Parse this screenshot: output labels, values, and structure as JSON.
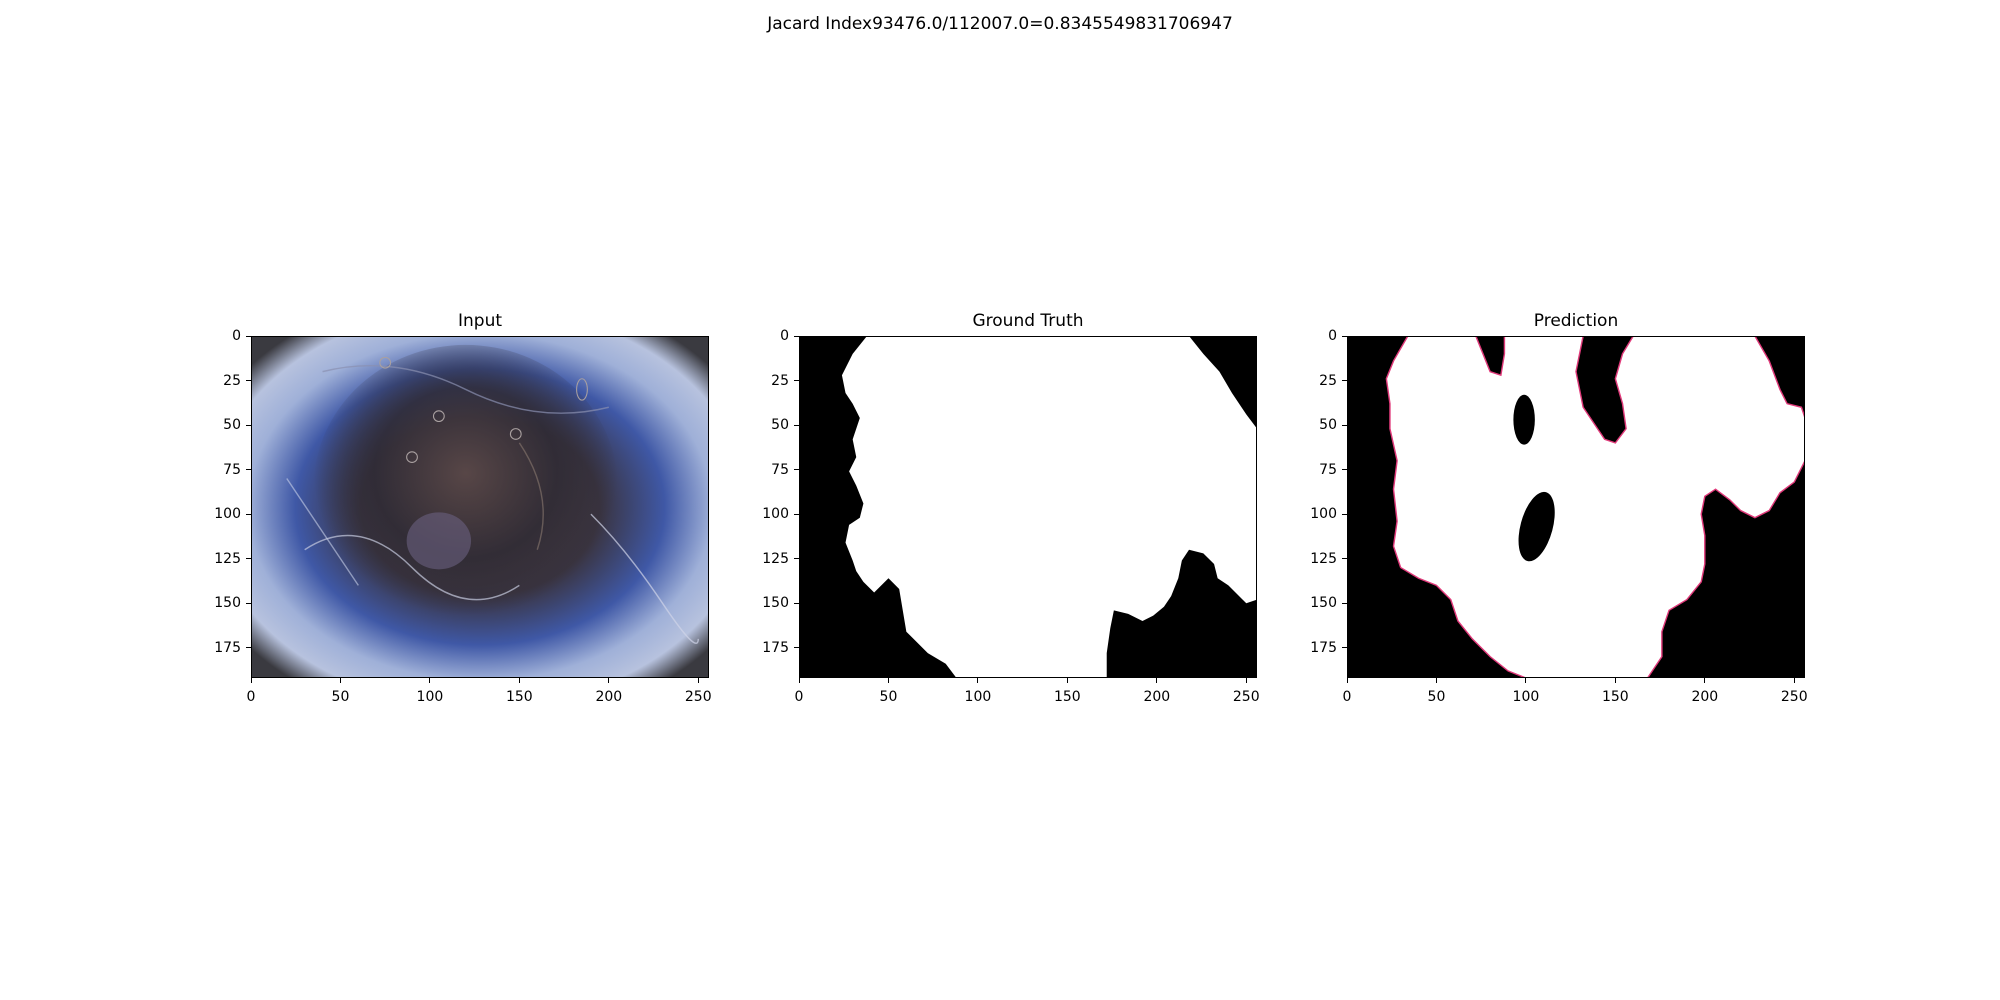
{
  "figure": {
    "title": "Jacard Index93476.0/112007.0=0.8345549831706947"
  },
  "chart_data": [
    {
      "type": "image",
      "title": "Input",
      "xlim": [
        0,
        256
      ],
      "ylim": [
        192,
        0
      ],
      "xticks": [
        0,
        50,
        100,
        150,
        200,
        250
      ],
      "yticks": [
        0,
        25,
        50,
        75,
        100,
        125,
        150,
        175
      ],
      "xtick_labels": [
        "0",
        "50",
        "100",
        "150",
        "200",
        "250"
      ],
      "ytick_labels": [
        "0",
        "25",
        "50",
        "75",
        "100",
        "125",
        "150",
        "175"
      ],
      "colors": {
        "lesion": "#2e2a2c",
        "skin": "#9fb0d8",
        "blue": "#3d55a0",
        "vignette": "#3a3a40"
      }
    },
    {
      "type": "image",
      "title": "Ground Truth",
      "xlim": [
        0,
        256
      ],
      "ylim": [
        192,
        0
      ],
      "xticks": [
        0,
        50,
        100,
        150,
        200,
        250
      ],
      "yticks": [
        0,
        25,
        50,
        75,
        100,
        125,
        150,
        175
      ],
      "xtick_labels": [
        "0",
        "50",
        "100",
        "150",
        "200",
        "250"
      ],
      "ytick_labels": [
        "0",
        "25",
        "50",
        "75",
        "100",
        "125",
        "150",
        "175"
      ],
      "colors": {
        "foreground": "#ffffff",
        "background": "#000000"
      }
    },
    {
      "type": "image",
      "title": "Prediction",
      "xlim": [
        0,
        256
      ],
      "ylim": [
        192,
        0
      ],
      "xticks": [
        0,
        50,
        100,
        150,
        200,
        250
      ],
      "yticks": [
        0,
        25,
        50,
        75,
        100,
        125,
        150,
        175
      ],
      "xtick_labels": [
        "0",
        "50",
        "100",
        "150",
        "200",
        "250"
      ],
      "ytick_labels": [
        "0",
        "25",
        "50",
        "75",
        "100",
        "125",
        "150",
        "175"
      ],
      "colors": {
        "foreground": "#ffffff",
        "background": "#000000"
      }
    }
  ]
}
